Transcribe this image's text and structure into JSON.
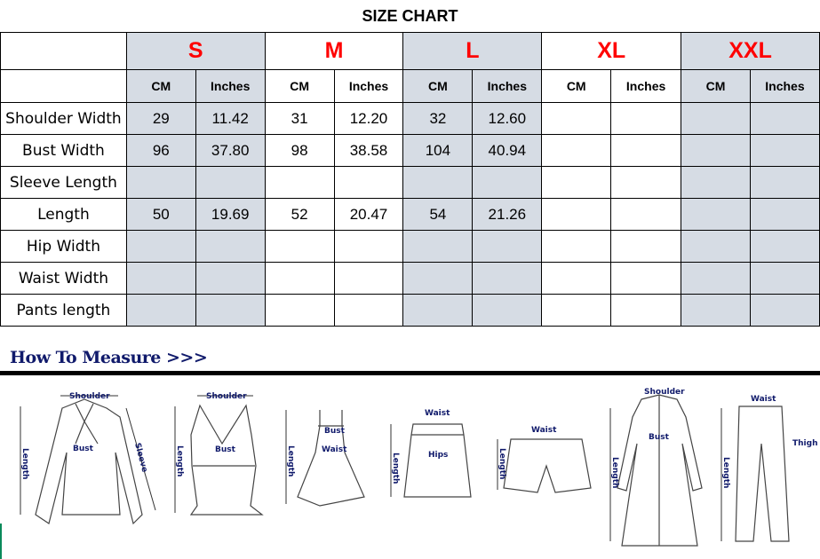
{
  "title": "SIZE CHART",
  "sizes": [
    "S",
    "M",
    "L",
    "XL",
    "XXL"
  ],
  "units": {
    "cm": "CM",
    "inches": "Inches"
  },
  "colors": {
    "size_label": "#ff0000",
    "shaded_column": "#d6dce4",
    "heading": "#101a6b"
  },
  "rows": [
    {
      "label": "Shoulder Width",
      "values": [
        "29",
        "11.42",
        "31",
        "12.20",
        "32",
        "12.60",
        "",
        "",
        "",
        ""
      ]
    },
    {
      "label": "Bust Width",
      "values": [
        "96",
        "37.80",
        "98",
        "38.58",
        "104",
        "40.94",
        "",
        "",
        "",
        ""
      ]
    },
    {
      "label": "Sleeve Length",
      "values": [
        "",
        "",
        "",
        "",
        "",
        "",
        "",
        "",
        "",
        ""
      ]
    },
    {
      "label": "Length",
      "values": [
        "50",
        "19.69",
        "52",
        "20.47",
        "54",
        "21.26",
        "",
        "",
        "",
        ""
      ]
    },
    {
      "label": "Hip Width",
      "values": [
        "",
        "",
        "",
        "",
        "",
        "",
        "",
        "",
        "",
        ""
      ]
    },
    {
      "label": "Waist Width",
      "values": [
        "",
        "",
        "",
        "",
        "",
        "",
        "",
        "",
        "",
        ""
      ]
    },
    {
      "label": "Pants length",
      "values": [
        "",
        "",
        "",
        "",
        "",
        "",
        "",
        "",
        "",
        ""
      ]
    }
  ],
  "how_to_measure": {
    "heading": "How To Measure >>>",
    "figures": [
      {
        "name": "blouse",
        "labels": [
          "Shoulder",
          "Bust",
          "Length",
          "Sleeve"
        ]
      },
      {
        "name": "tank-top",
        "labels": [
          "Shoulder",
          "Bust",
          "Length"
        ]
      },
      {
        "name": "dress",
        "labels": [
          "Bust",
          "Waist",
          "Length"
        ]
      },
      {
        "name": "skirt",
        "labels": [
          "Waist",
          "Hips",
          "Length"
        ]
      },
      {
        "name": "shorts",
        "labels": [
          "Waist",
          "Length"
        ]
      },
      {
        "name": "coat",
        "labels": [
          "Shoulder",
          "Bust",
          "Length"
        ]
      },
      {
        "name": "pants",
        "labels": [
          "Waist",
          "Thigh",
          "Length"
        ]
      }
    ]
  }
}
